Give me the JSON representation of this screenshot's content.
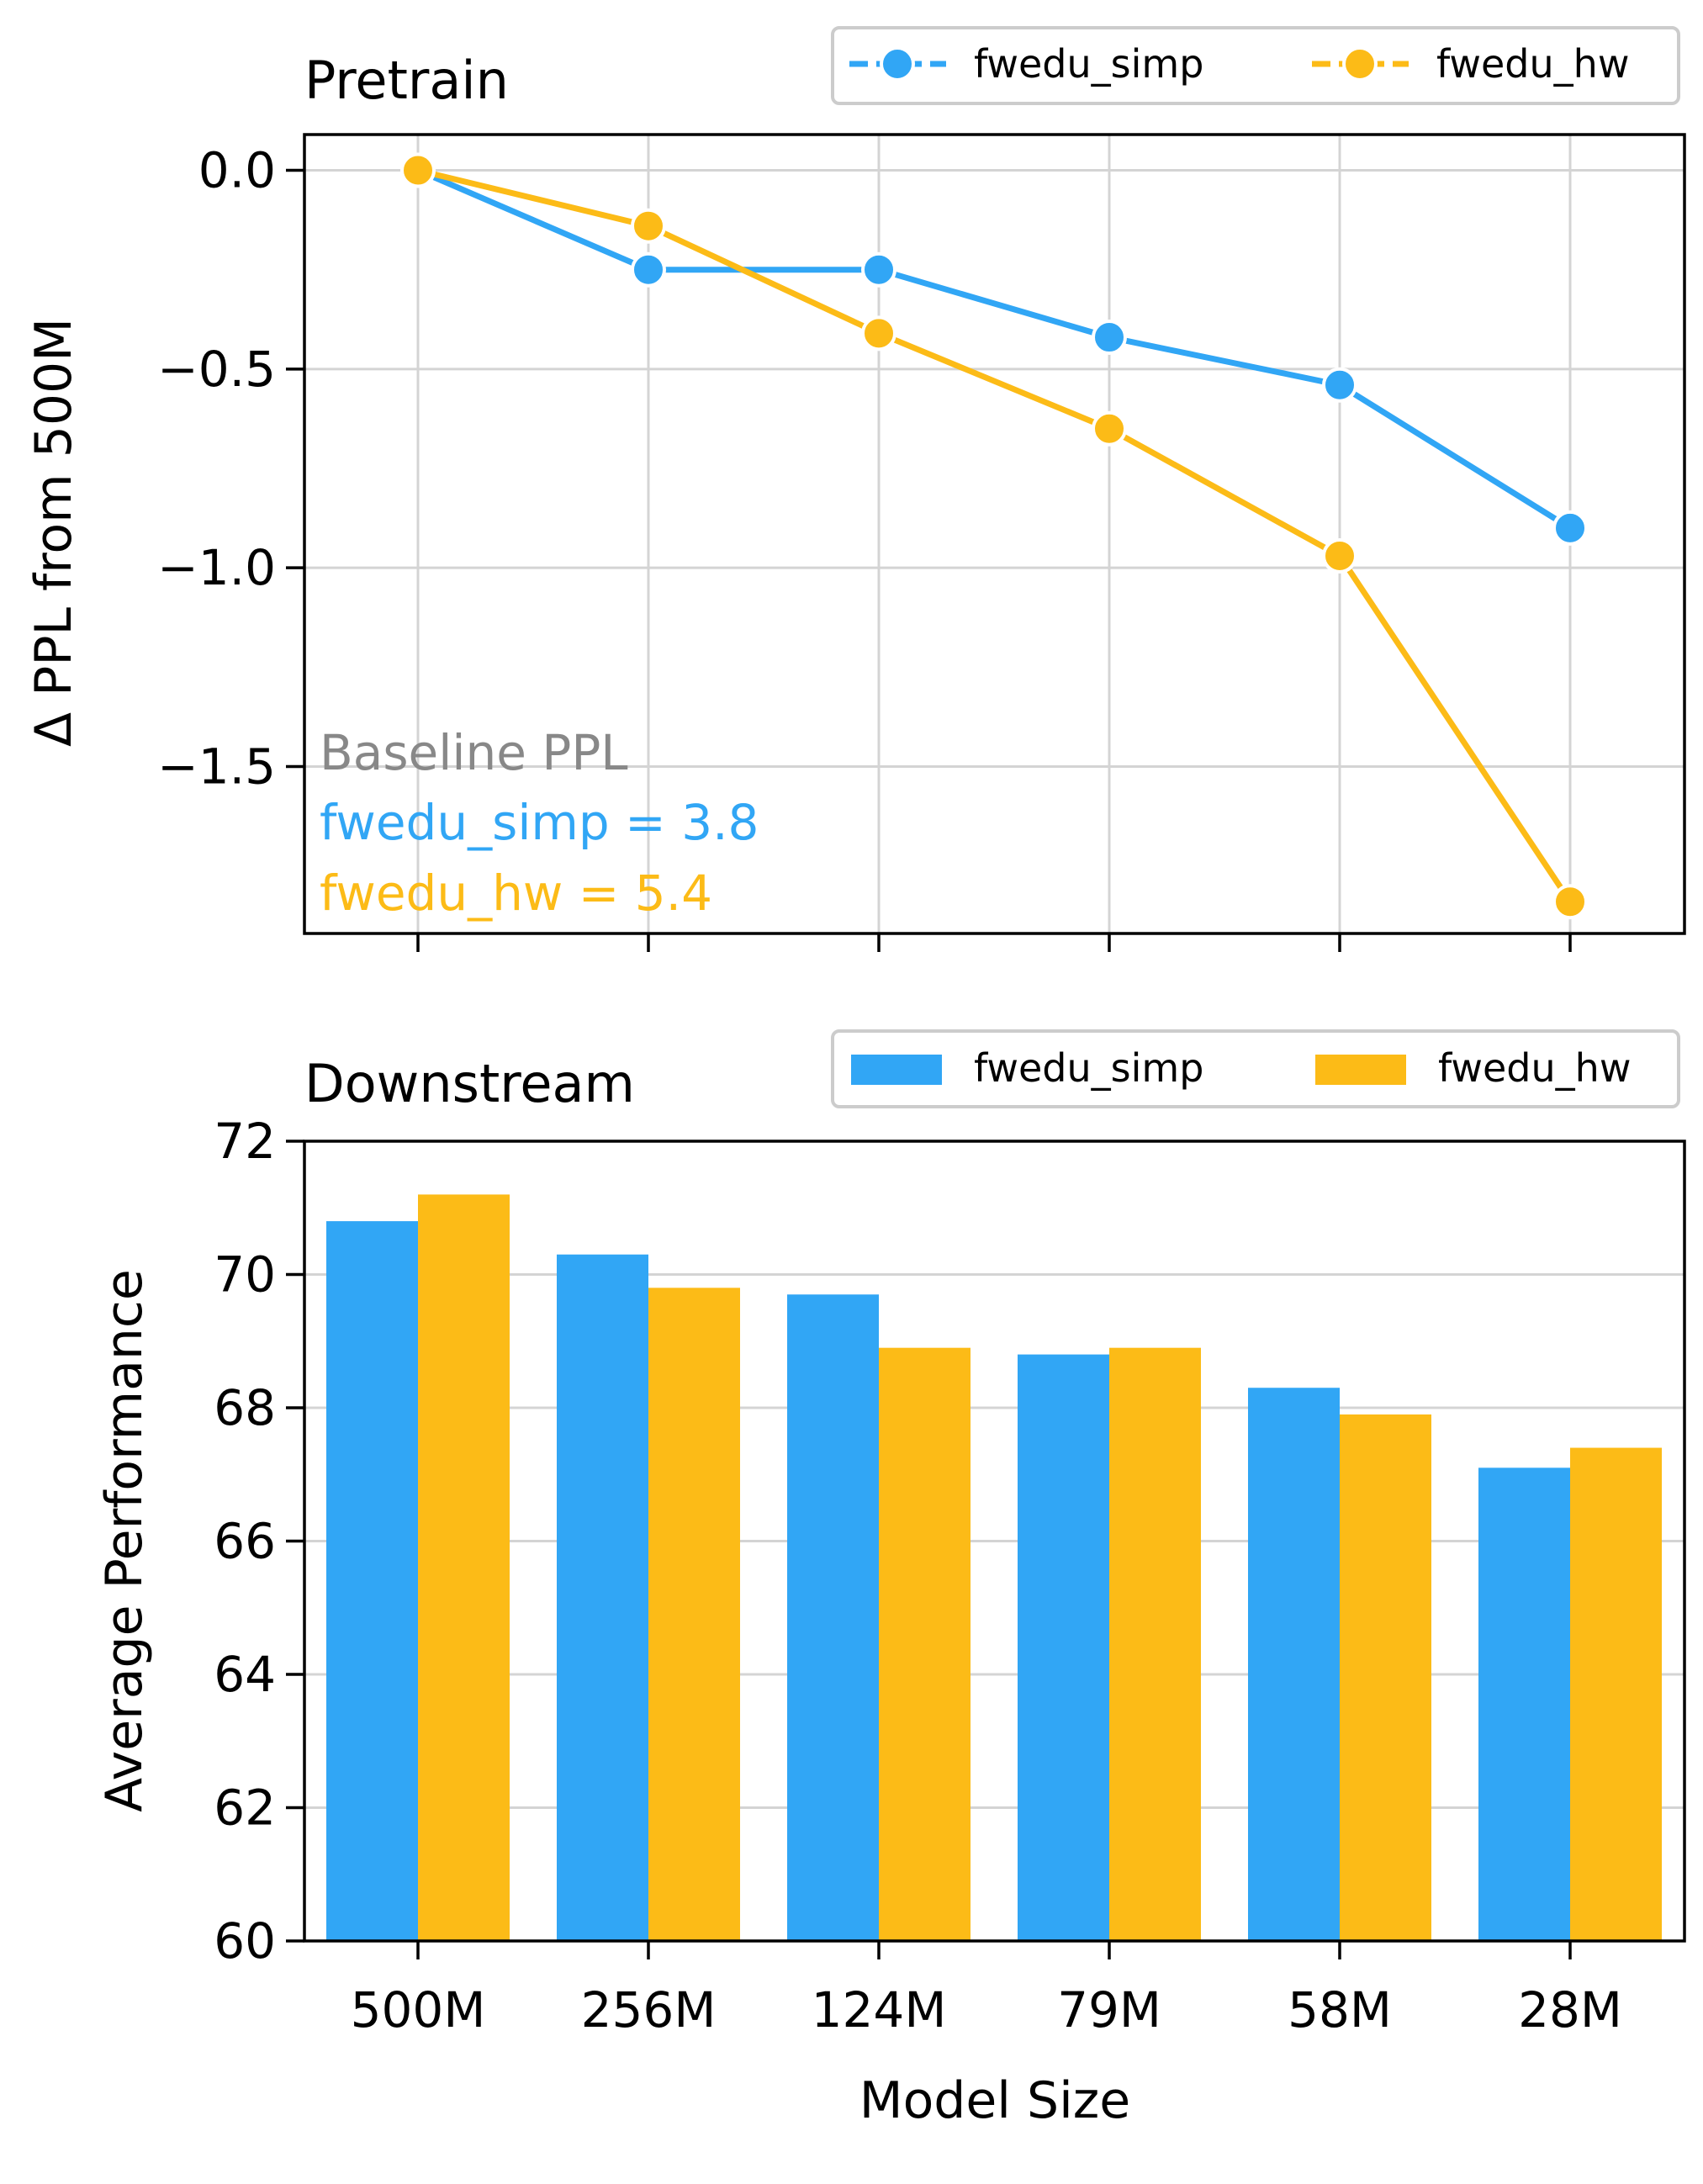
{
  "colors": {
    "simp": "#31a6f5",
    "hw": "#fcbb17",
    "baseline": "#888888"
  },
  "chart_data": [
    {
      "type": "line",
      "title": "Pretrain",
      "xlabel": "",
      "ylabel": "Δ PPL from 500M",
      "categories": [
        "500M",
        "256M",
        "124M",
        "79M",
        "58M",
        "28M"
      ],
      "ylim": [
        -1.92,
        0.09
      ],
      "yticks": [
        0.0,
        -0.5,
        -1.0,
        -1.5
      ],
      "ytick_labels": [
        "0.0",
        "−0.5",
        "−1.0",
        "−1.5"
      ],
      "grid": true,
      "legend": "top-right",
      "series": [
        {
          "name": "fwedu_simp",
          "values": [
            0.0,
            -0.25,
            -0.25,
            -0.42,
            -0.54,
            -0.9
          ]
        },
        {
          "name": "fwedu_hw",
          "values": [
            0.0,
            -0.14,
            -0.41,
            -0.65,
            -0.97,
            -1.84
          ]
        }
      ],
      "annotations": {
        "baseline_title": "Baseline PPL",
        "simp_line": "fwedu_simp = 3.8",
        "hw_line": "fwedu_hw = 5.4"
      }
    },
    {
      "type": "bar",
      "title": "Downstream",
      "xlabel": "Model Size",
      "ylabel": "Average Performance",
      "categories": [
        "500M",
        "256M",
        "124M",
        "79M",
        "58M",
        "28M"
      ],
      "ylim": [
        60,
        72
      ],
      "yticks": [
        60,
        62,
        64,
        66,
        68,
        70,
        72
      ],
      "ytick_labels": [
        "60",
        "62",
        "64",
        "66",
        "68",
        "70",
        "72"
      ],
      "grid": true,
      "legend": "top-right",
      "series": [
        {
          "name": "fwedu_simp",
          "values": [
            70.8,
            70.3,
            69.7,
            68.8,
            68.3,
            67.1
          ]
        },
        {
          "name": "fwedu_hw",
          "values": [
            71.2,
            69.8,
            68.9,
            68.9,
            67.9,
            67.4
          ]
        }
      ]
    }
  ]
}
